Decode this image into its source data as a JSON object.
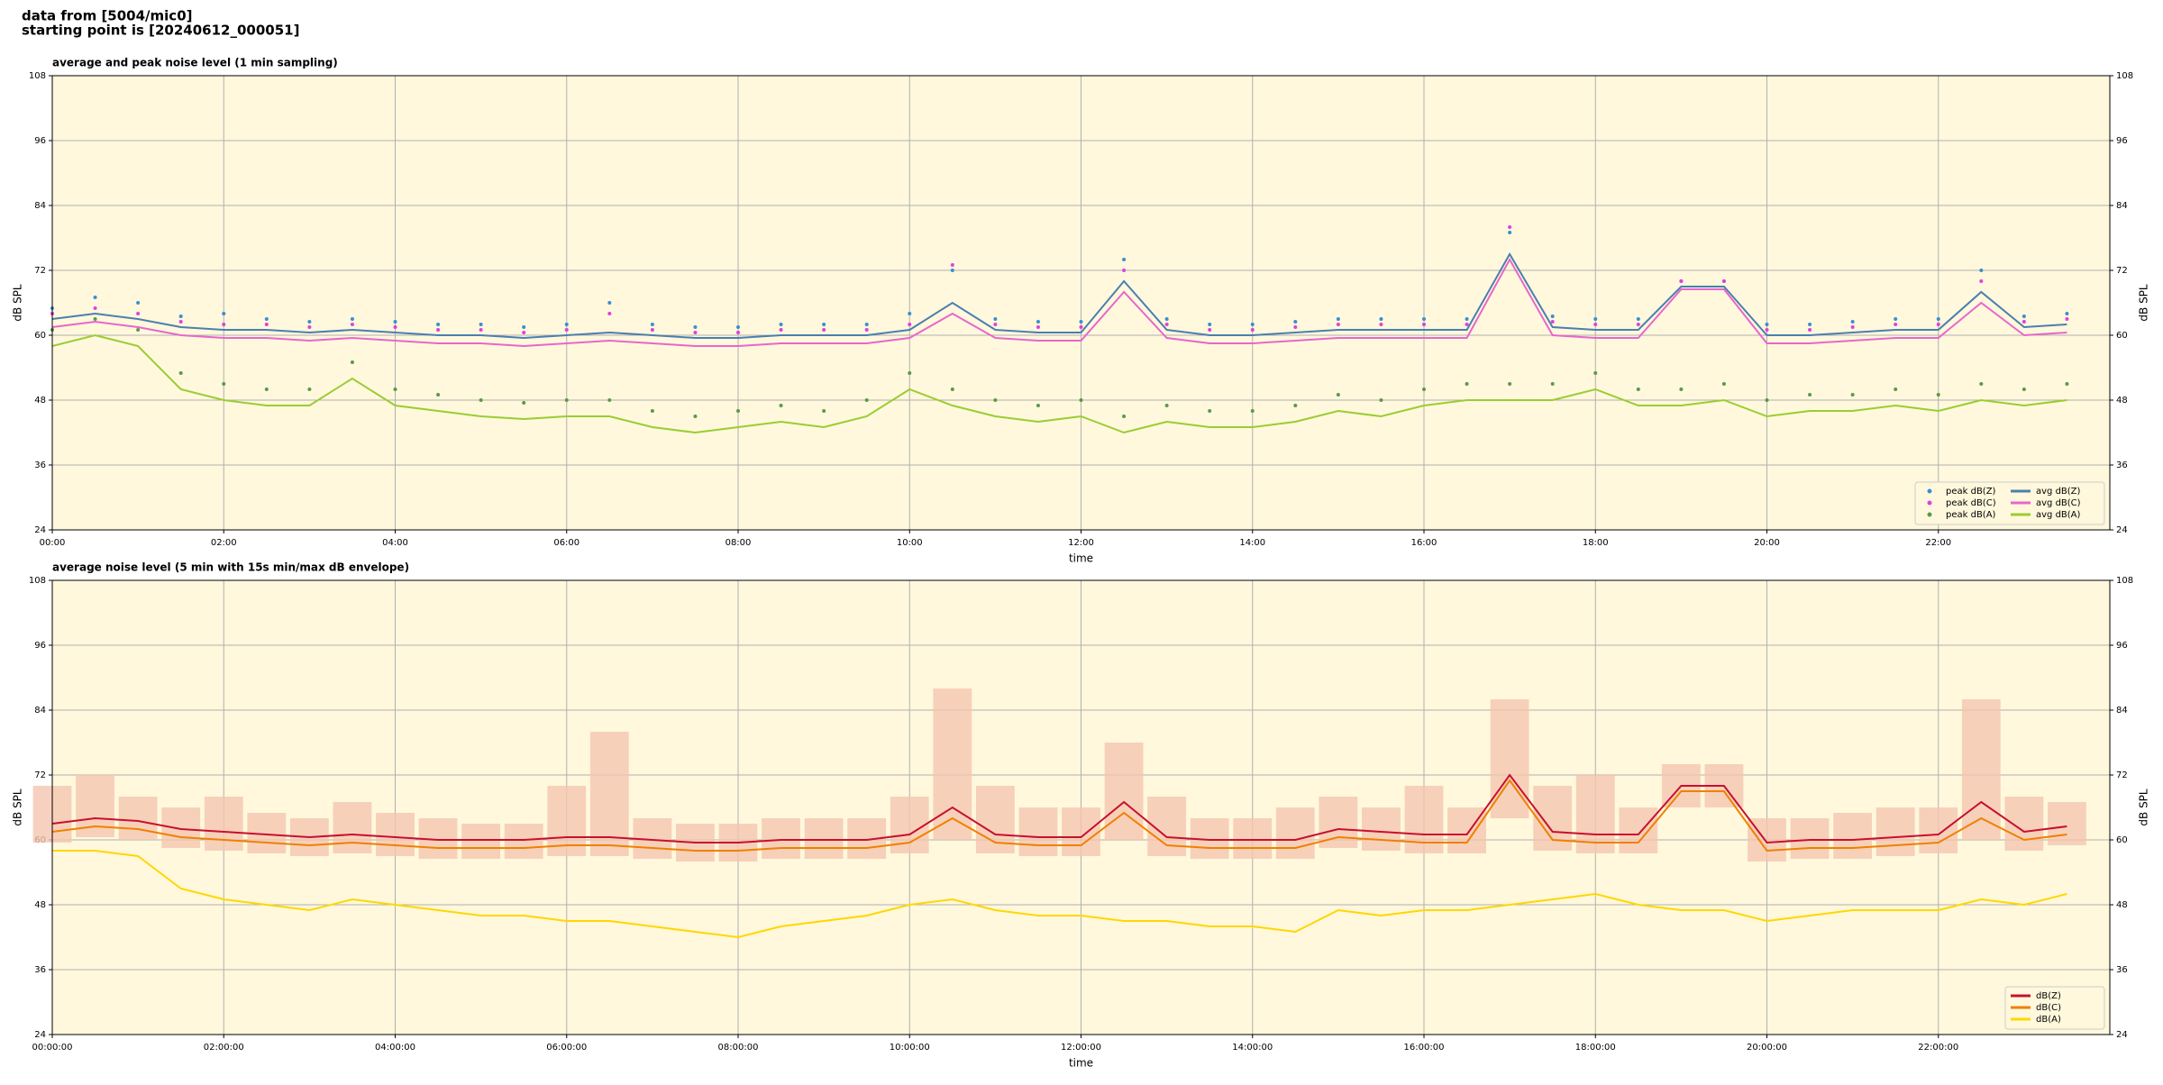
{
  "header": {
    "line1": "data from [5004/mic0]",
    "line2": "starting point is [20240612_000051]"
  },
  "chart_data": [
    {
      "type": "line",
      "title": "average and peak noise level (1 min sampling)",
      "x_label": "time",
      "y_label": "dB SPL",
      "x": [
        0,
        30,
        60,
        90,
        120,
        150,
        180,
        210,
        240,
        270,
        300,
        330,
        360,
        390,
        420,
        450,
        480,
        510,
        540,
        570,
        600,
        630,
        660,
        690,
        720,
        750,
        780,
        810,
        840,
        870,
        900,
        930,
        960,
        990,
        1020,
        1050,
        1080,
        1110,
        1140,
        1170,
        1200,
        1230,
        1260,
        1290,
        1320,
        1350,
        1380,
        1410
      ],
      "xlim": [
        0,
        1440
      ],
      "xticks": [
        {
          "value": 0,
          "label": "00:00"
        },
        {
          "value": 120,
          "label": "02:00"
        },
        {
          "value": 240,
          "label": "04:00"
        },
        {
          "value": 360,
          "label": "06:00"
        },
        {
          "value": 480,
          "label": "08:00"
        },
        {
          "value": 600,
          "label": "10:00"
        },
        {
          "value": 720,
          "label": "12:00"
        },
        {
          "value": 840,
          "label": "14:00"
        },
        {
          "value": 960,
          "label": "16:00"
        },
        {
          "value": 1080,
          "label": "18:00"
        },
        {
          "value": 1200,
          "label": "20:00"
        },
        {
          "value": 1320,
          "label": "22:00"
        }
      ],
      "ylim": [
        24,
        108
      ],
      "yticks": [
        24,
        36,
        48,
        60,
        72,
        84,
        96,
        108
      ],
      "grid": true,
      "legend": "lower right",
      "legend_columns": 2,
      "series": [
        {
          "name": "peak dB(Z)",
          "color": "#3a8fd0",
          "style": "markers",
          "values": [
            65,
            67,
            66,
            63.5,
            64,
            63,
            62.5,
            63,
            62.5,
            62,
            62,
            61.5,
            62,
            66,
            62,
            61.5,
            61.5,
            62,
            62,
            62,
            64,
            72,
            63,
            62.5,
            62.5,
            74,
            63,
            62,
            62,
            62.5,
            63,
            63,
            63,
            63,
            79,
            63.5,
            63,
            63,
            70,
            70,
            62,
            62,
            62.5,
            63,
            63,
            72,
            63.5,
            64
          ]
        },
        {
          "name": "peak dB(C)",
          "color": "#e040e0",
          "style": "markers",
          "values": [
            64,
            65,
            64,
            62.5,
            62,
            62,
            61.5,
            62,
            61.5,
            61,
            61,
            60.5,
            61,
            64,
            61,
            60.5,
            60.5,
            61,
            61,
            61,
            62,
            73,
            62,
            61.5,
            61.5,
            72,
            62,
            61,
            61,
            61.5,
            62,
            62,
            62,
            62,
            80,
            62.5,
            62,
            62,
            70,
            70,
            61,
            61,
            61.5,
            62,
            62,
            70,
            62.5,
            63
          ]
        },
        {
          "name": "peak dB(A)",
          "color": "#5a9a48",
          "style": "markers",
          "values": [
            61,
            63,
            61,
            53,
            51,
            50,
            50,
            55,
            50,
            49,
            48,
            47.5,
            48,
            48,
            46,
            45,
            46,
            47,
            46,
            48,
            53,
            50,
            48,
            47,
            48,
            45,
            47,
            46,
            46,
            47,
            49,
            48,
            50,
            51,
            51,
            51,
            53,
            50,
            50,
            51,
            48,
            49,
            49,
            50,
            49,
            51,
            50,
            51
          ]
        },
        {
          "name": "avg dB(Z)",
          "color": "#4a7fb0",
          "style": "line",
          "values": [
            63,
            64,
            63,
            61.5,
            61,
            61,
            60.5,
            61,
            60.5,
            60,
            60,
            59.5,
            60,
            60.5,
            60,
            59.5,
            59.5,
            60,
            60,
            60,
            61,
            66,
            61,
            60.5,
            60.5,
            70,
            61,
            60,
            60,
            60.5,
            61,
            61,
            61,
            61,
            75,
            61.5,
            61,
            61,
            69,
            69,
            60,
            60,
            60.5,
            61,
            61,
            68,
            61.5,
            62
          ]
        },
        {
          "name": "avg dB(C)",
          "color": "#e866cc",
          "style": "line",
          "values": [
            61.5,
            62.5,
            61.5,
            60,
            59.5,
            59.5,
            59,
            59.5,
            59,
            58.5,
            58.5,
            58,
            58.5,
            59,
            58.5,
            58,
            58,
            58.5,
            58.5,
            58.5,
            59.5,
            64,
            59.5,
            59,
            59,
            68,
            59.5,
            58.5,
            58.5,
            59,
            59.5,
            59.5,
            59.5,
            59.5,
            74,
            60,
            59.5,
            59.5,
            68.5,
            68.5,
            58.5,
            58.5,
            59,
            59.5,
            59.5,
            66,
            60,
            60.5
          ]
        },
        {
          "name": "avg dB(A)",
          "color": "#9acd32",
          "style": "line",
          "values": [
            58,
            60,
            58,
            50,
            48,
            47,
            47,
            52,
            47,
            46,
            45,
            44.5,
            45,
            45,
            43,
            42,
            43,
            44,
            43,
            45,
            50,
            47,
            45,
            44,
            45,
            42,
            44,
            43,
            43,
            44,
            46,
            45,
            47,
            48,
            48,
            48,
            50,
            47,
            47,
            48,
            45,
            46,
            46,
            47,
            46,
            48,
            47,
            48
          ]
        }
      ]
    },
    {
      "type": "line",
      "title": "average noise level (5 min with 15s min/max dB envelope)",
      "x_label": "time",
      "y_label": "dB SPL",
      "x": [
        0,
        30,
        60,
        90,
        120,
        150,
        180,
        210,
        240,
        270,
        300,
        330,
        360,
        390,
        420,
        450,
        480,
        510,
        540,
        570,
        600,
        630,
        660,
        690,
        720,
        750,
        780,
        810,
        840,
        870,
        900,
        930,
        960,
        990,
        1020,
        1050,
        1080,
        1110,
        1140,
        1170,
        1200,
        1230,
        1260,
        1290,
        1320,
        1350,
        1380,
        1410
      ],
      "xlim": [
        0,
        1440
      ],
      "xticks": [
        {
          "value": 0,
          "label": "00:00:00"
        },
        {
          "value": 120,
          "label": "02:00:00"
        },
        {
          "value": 240,
          "label": "04:00:00"
        },
        {
          "value": 360,
          "label": "06:00:00"
        },
        {
          "value": 480,
          "label": "08:00:00"
        },
        {
          "value": 600,
          "label": "10:00:00"
        },
        {
          "value": 720,
          "label": "12:00:00"
        },
        {
          "value": 840,
          "label": "14:00:00"
        },
        {
          "value": 960,
          "label": "16:00:00"
        },
        {
          "value": 1080,
          "label": "18:00:00"
        },
        {
          "value": 1200,
          "label": "20:00:00"
        },
        {
          "value": 1320,
          "label": "22:00:00"
        }
      ],
      "ylim": [
        24,
        108
      ],
      "yticks": [
        24,
        36,
        48,
        60,
        72,
        84,
        96,
        108
      ],
      "grid": true,
      "legend": "lower right",
      "legend_columns": 1,
      "envelope": {
        "color": "#f5c6b0",
        "lower": [
          59.5,
          60.5,
          60,
          58.5,
          58,
          57.5,
          57,
          57.5,
          57,
          56.5,
          56.5,
          56.5,
          57,
          57,
          56.5,
          56,
          56,
          56.5,
          56.5,
          56.5,
          57.5,
          60,
          57.5,
          57,
          57,
          60,
          57,
          56.5,
          56.5,
          56.5,
          58.5,
          58,
          57.5,
          57.5,
          64,
          58,
          57.5,
          57.5,
          66,
          66,
          56,
          56.5,
          56.5,
          57,
          57.5,
          60,
          58,
          59
        ],
        "upper": [
          70,
          72,
          68,
          66,
          68,
          65,
          64,
          67,
          65,
          64,
          63,
          63,
          70,
          80,
          64,
          63,
          63,
          64,
          64,
          64,
          68,
          88,
          70,
          66,
          66,
          78,
          68,
          64,
          64,
          66,
          68,
          66,
          70,
          66,
          86,
          70,
          72,
          66,
          74,
          74,
          64,
          64,
          65,
          66,
          66,
          86,
          68,
          67
        ]
      },
      "series": [
        {
          "name": "dB(Z)",
          "color": "#c8102e",
          "style": "line",
          "values": [
            63,
            64,
            63.5,
            62,
            61.5,
            61,
            60.5,
            61,
            60.5,
            60,
            60,
            60,
            60.5,
            60.5,
            60,
            59.5,
            59.5,
            60,
            60,
            60,
            61,
            66,
            61,
            60.5,
            60.5,
            67,
            60.5,
            60,
            60,
            60,
            62,
            61.5,
            61,
            61,
            72,
            61.5,
            61,
            61,
            70,
            70,
            59.5,
            60,
            60,
            60.5,
            61,
            67,
            61.5,
            62.5
          ]
        },
        {
          "name": "dB(C)",
          "color": "#f08000",
          "style": "line",
          "values": [
            61.5,
            62.5,
            62,
            60.5,
            60,
            59.5,
            59,
            59.5,
            59,
            58.5,
            58.5,
            58.5,
            59,
            59,
            58.5,
            58,
            58,
            58.5,
            58.5,
            58.5,
            59.5,
            64,
            59.5,
            59,
            59,
            65,
            59,
            58.5,
            58.5,
            58.5,
            60.5,
            60,
            59.5,
            59.5,
            71,
            60,
            59.5,
            59.5,
            69,
            69,
            58,
            58.5,
            58.5,
            59,
            59.5,
            64,
            60,
            61
          ]
        },
        {
          "name": "dB(A)",
          "color": "#ffd700",
          "style": "line",
          "values": [
            58,
            58,
            57,
            51,
            49,
            48,
            47,
            49,
            48,
            47,
            46,
            46,
            45,
            45,
            44,
            43,
            42,
            44,
            45,
            46,
            48,
            49,
            47,
            46,
            46,
            45,
            45,
            44,
            44,
            43,
            47,
            46,
            47,
            47,
            48,
            49,
            50,
            48,
            47,
            47,
            45,
            46,
            47,
            47,
            47,
            49,
            48,
            50
          ]
        }
      ]
    }
  ]
}
